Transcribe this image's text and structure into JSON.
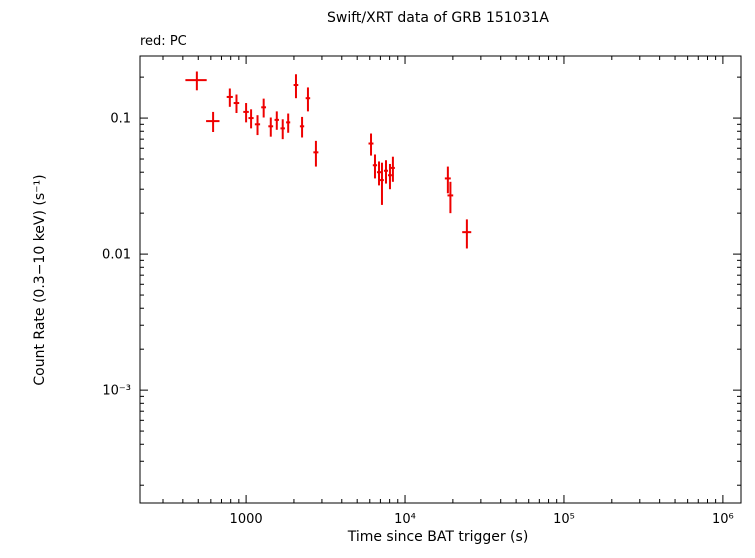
{
  "chart_data": {
    "type": "scatter",
    "title": "Swift/XRT data of GRB 151031A",
    "legend": "red: PC",
    "legend_position": "top-left",
    "xlabel": "Time since BAT trigger (s)",
    "ylabel": "Count Rate (0.3−10 keV) (s⁻¹)",
    "xscale": "log",
    "yscale": "log",
    "xlim": [
      215,
      1300000
    ],
    "ylim": [
      0.000148,
      0.286
    ],
    "grid": false,
    "xticks": [
      {
        "value": 1000,
        "label": "1000"
      },
      {
        "value": 10000,
        "label": "10⁴"
      },
      {
        "value": 100000,
        "label": "10⁵"
      },
      {
        "value": 1000000,
        "label": "10⁶"
      }
    ],
    "yticks": [
      {
        "value": 0.1,
        "label": "0.1"
      },
      {
        "value": 0.01,
        "label": "0.01"
      },
      {
        "value": 0.001,
        "label": "10⁻³"
      }
    ],
    "series": [
      {
        "name": "PC",
        "mode": "Photon Counting",
        "color": "#ee0000",
        "marker": "cross-with-error-bars",
        "points": [
          {
            "t": 490,
            "terr": 75,
            "rate": 0.19,
            "rerr": 0.03
          },
          {
            "t": 620,
            "terr": 60,
            "rate": 0.095,
            "rerr": 0.016
          },
          {
            "t": 790,
            "terr": 35,
            "rate": 0.143,
            "rerr": 0.022
          },
          {
            "t": 870,
            "terr": 35,
            "rate": 0.129,
            "rerr": 0.02
          },
          {
            "t": 1000,
            "terr": 40,
            "rate": 0.111,
            "rerr": 0.018
          },
          {
            "t": 1075,
            "terr": 40,
            "rate": 0.1,
            "rerr": 0.016
          },
          {
            "t": 1180,
            "terr": 45,
            "rate": 0.09,
            "rerr": 0.015
          },
          {
            "t": 1290,
            "terr": 45,
            "rate": 0.12,
            "rerr": 0.019
          },
          {
            "t": 1430,
            "terr": 50,
            "rate": 0.087,
            "rerr": 0.014
          },
          {
            "t": 1560,
            "terr": 50,
            "rate": 0.097,
            "rerr": 0.015
          },
          {
            "t": 1700,
            "terr": 55,
            "rate": 0.084,
            "rerr": 0.014
          },
          {
            "t": 1840,
            "terr": 55,
            "rate": 0.093,
            "rerr": 0.015
          },
          {
            "t": 2060,
            "terr": 70,
            "rate": 0.175,
            "rerr": 0.035
          },
          {
            "t": 2250,
            "terr": 70,
            "rate": 0.087,
            "rerr": 0.015
          },
          {
            "t": 2450,
            "terr": 80,
            "rate": 0.14,
            "rerr": 0.028
          },
          {
            "t": 2750,
            "terr": 100,
            "rate": 0.056,
            "rerr": 0.012
          },
          {
            "t": 6110,
            "terr": 220,
            "rate": 0.065,
            "rerr": 0.012
          },
          {
            "t": 6470,
            "terr": 200,
            "rate": 0.045,
            "rerr": 0.009
          },
          {
            "t": 6860,
            "terr": 200,
            "rate": 0.04,
            "rerr": 0.008
          },
          {
            "t": 7160,
            "terr": 200,
            "rate": 0.035,
            "rerr": 0.012
          },
          {
            "t": 7590,
            "terr": 220,
            "rate": 0.041,
            "rerr": 0.008
          },
          {
            "t": 8040,
            "terr": 230,
            "rate": 0.038,
            "rerr": 0.008
          },
          {
            "t": 8390,
            "terr": 240,
            "rate": 0.043,
            "rerr": 0.009
          },
          {
            "t": 18600,
            "terr": 800,
            "rate": 0.036,
            "rerr": 0.008
          },
          {
            "t": 19300,
            "terr": 800,
            "rate": 0.027,
            "rerr": 0.007
          },
          {
            "t": 24500,
            "terr": 1600,
            "rate": 0.0145,
            "rerr": 0.0035
          }
        ]
      }
    ]
  }
}
